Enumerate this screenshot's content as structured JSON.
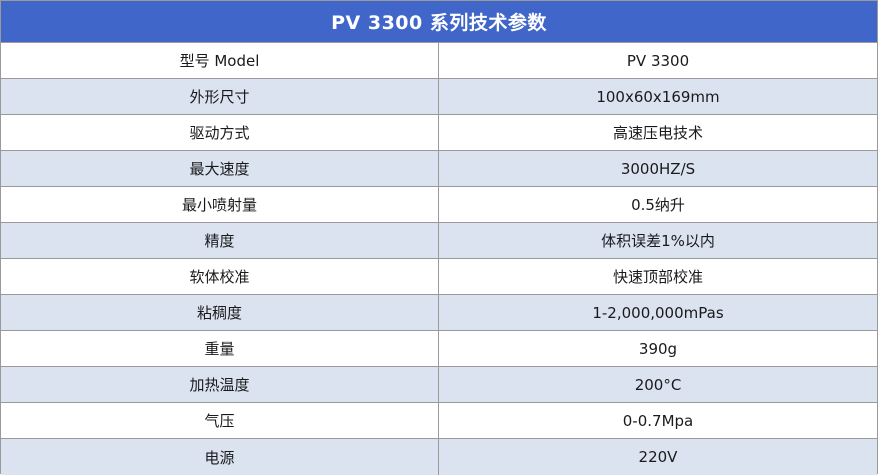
{
  "table": {
    "title": "PV 3300 系列技术参数",
    "rows": [
      {
        "label": "型号 Model",
        "value": "PV 3300"
      },
      {
        "label": "外形尺寸",
        "value": "100x60x169mm"
      },
      {
        "label": "驱动方式",
        "value": "高速压电技术"
      },
      {
        "label": "最大速度",
        "value": "3000HZ/S"
      },
      {
        "label": "最小喷射量",
        "value": "0.5纳升"
      },
      {
        "label": "精度",
        "value": "体积误差1%以内"
      },
      {
        "label": "软体校准",
        "value": "快速顶部校准"
      },
      {
        "label": "粘稠度",
        "value": "1-2,000,000mPas"
      },
      {
        "label": "重量",
        "value": "390g"
      },
      {
        "label": "加热温度",
        "value": "200°C"
      },
      {
        "label": "气压",
        "value": "0-0.7Mpa"
      },
      {
        "label": "电源",
        "value": "220V"
      }
    ]
  },
  "colors": {
    "header_bg": "#3f66c8",
    "alt_row_bg": "#dbe3f1",
    "border": "#9a9a9a"
  }
}
